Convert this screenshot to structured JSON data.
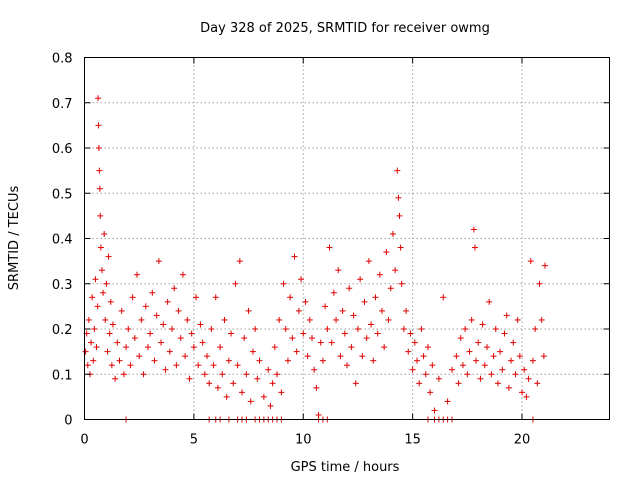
{
  "chart_data": {
    "type": "scatter",
    "title": "Day 328 of 2025, SRMTID for receiver owmg",
    "xlabel": "GPS time / hours",
    "ylabel": "SRMTID / TECUs",
    "xlim": [
      0,
      24
    ],
    "ylim": [
      0,
      0.8
    ],
    "x_ticks": [
      0,
      5,
      10,
      15,
      20
    ],
    "x_tick_labels": [
      "0",
      "5",
      "10",
      "15",
      "20"
    ],
    "y_ticks": [
      0,
      0.1,
      0.2,
      0.3,
      0.4,
      0.5,
      0.6,
      0.7,
      0.8
    ],
    "y_tick_labels": [
      "0",
      "0.1",
      "0.2",
      "0.3",
      "0.4",
      "0.5",
      "0.6",
      "0.7",
      "0.8"
    ],
    "grid": true,
    "marker": "+",
    "marker_color": "#e00000",
    "series": [
      {
        "name": "SRMTID",
        "points": [
          [
            0.05,
            0.15
          ],
          [
            0.1,
            0.19
          ],
          [
            0.15,
            0.12
          ],
          [
            0.2,
            0.22
          ],
          [
            0.25,
            0.1
          ],
          [
            0.3,
            0.17
          ],
          [
            0.35,
            0.27
          ],
          [
            0.4,
            0.13
          ],
          [
            0.45,
            0.2
          ],
          [
            0.5,
            0.31
          ],
          [
            0.55,
            0.16
          ],
          [
            0.6,
            0.25
          ],
          [
            0.62,
            0.71
          ],
          [
            0.64,
            0.65
          ],
          [
            0.66,
            0.6
          ],
          [
            0.68,
            0.55
          ],
          [
            0.7,
            0.51
          ],
          [
            0.72,
            0.45
          ],
          [
            0.75,
            0.38
          ],
          [
            0.8,
            0.33
          ],
          [
            0.85,
            0.28
          ],
          [
            0.9,
            0.41
          ],
          [
            0.95,
            0.22
          ],
          [
            1.0,
            0.3
          ],
          [
            1.05,
            0.15
          ],
          [
            1.1,
            0.36
          ],
          [
            1.15,
            0.19
          ],
          [
            1.2,
            0.26
          ],
          [
            1.25,
            0.12
          ],
          [
            1.3,
            0.21
          ],
          [
            1.4,
            0.09
          ],
          [
            1.5,
            0.17
          ],
          [
            1.6,
            0.13
          ],
          [
            1.7,
            0.24
          ],
          [
            1.8,
            0.1
          ],
          [
            1.9,
            0.16
          ],
          [
            2.0,
            0.2
          ],
          [
            2.1,
            0.12
          ],
          [
            2.2,
            0.27
          ],
          [
            2.3,
            0.18
          ],
          [
            2.4,
            0.32
          ],
          [
            2.5,
            0.14
          ],
          [
            2.6,
            0.22
          ],
          [
            2.7,
            0.1
          ],
          [
            2.8,
            0.25
          ],
          [
            2.9,
            0.16
          ],
          [
            3.0,
            0.19
          ],
          [
            3.1,
            0.28
          ],
          [
            3.2,
            0.13
          ],
          [
            3.3,
            0.23
          ],
          [
            3.4,
            0.35
          ],
          [
            3.5,
            0.17
          ],
          [
            3.6,
            0.21
          ],
          [
            3.7,
            0.11
          ],
          [
            3.8,
            0.26
          ],
          [
            3.9,
            0.15
          ],
          [
            4.0,
            0.2
          ],
          [
            4.1,
            0.29
          ],
          [
            4.2,
            0.12
          ],
          [
            4.3,
            0.24
          ],
          [
            4.4,
            0.18
          ],
          [
            4.5,
            0.32
          ],
          [
            4.6,
            0.14
          ],
          [
            4.7,
            0.22
          ],
          [
            4.8,
            0.09
          ],
          [
            4.9,
            0.19
          ],
          [
            5.0,
            0.16
          ],
          [
            5.1,
            0.27
          ],
          [
            5.2,
            0.12
          ],
          [
            5.3,
            0.21
          ],
          [
            5.4,
            0.17
          ],
          [
            5.5,
            0.1
          ],
          [
            5.6,
            0.14
          ],
          [
            5.7,
            0.08
          ],
          [
            5.8,
            0.2
          ],
          [
            5.9,
            0.12
          ],
          [
            6.0,
            0.27
          ],
          [
            6.1,
            0.07
          ],
          [
            6.2,
            0.16
          ],
          [
            6.3,
            0.1
          ],
          [
            6.4,
            0.22
          ],
          [
            6.5,
            0.05
          ],
          [
            6.6,
            0.13
          ],
          [
            6.7,
            0.19
          ],
          [
            6.8,
            0.08
          ],
          [
            6.9,
            0.3
          ],
          [
            7.0,
            0.12
          ],
          [
            7.1,
            0.35
          ],
          [
            7.2,
            0.06
          ],
          [
            7.3,
            0.18
          ],
          [
            7.4,
            0.1
          ],
          [
            7.5,
            0.24
          ],
          [
            7.6,
            0.04
          ],
          [
            7.7,
            0.15
          ],
          [
            7.8,
            0.2
          ],
          [
            7.9,
            0.09
          ],
          [
            8.0,
            0.13
          ],
          [
            8.2,
            0.05
          ],
          [
            8.4,
            0.11
          ],
          [
            8.5,
            0.03
          ],
          [
            8.6,
            0.08
          ],
          [
            8.7,
            0.16
          ],
          [
            8.8,
            0.1
          ],
          [
            8.9,
            0.22
          ],
          [
            9.0,
            0.06
          ],
          [
            9.1,
            0.3
          ],
          [
            9.2,
            0.2
          ],
          [
            9.3,
            0.13
          ],
          [
            9.4,
            0.27
          ],
          [
            9.5,
            0.18
          ],
          [
            9.6,
            0.36
          ],
          [
            9.7,
            0.15
          ],
          [
            9.8,
            0.24
          ],
          [
            9.9,
            0.31
          ],
          [
            10.0,
            0.19
          ],
          [
            10.1,
            0.26
          ],
          [
            10.2,
            0.14
          ],
          [
            10.3,
            0.22
          ],
          [
            10.4,
            0.18
          ],
          [
            10.5,
            0.11
          ],
          [
            10.6,
            0.07
          ],
          [
            10.7,
            0.01
          ],
          [
            10.8,
            0.17
          ],
          [
            10.9,
            0.13
          ],
          [
            11.0,
            0.25
          ],
          [
            11.1,
            0.2
          ],
          [
            11.2,
            0.38
          ],
          [
            11.3,
            0.17
          ],
          [
            11.4,
            0.28
          ],
          [
            11.5,
            0.22
          ],
          [
            11.6,
            0.33
          ],
          [
            11.7,
            0.14
          ],
          [
            11.8,
            0.24
          ],
          [
            11.9,
            0.19
          ],
          [
            12.0,
            0.12
          ],
          [
            12.1,
            0.29
          ],
          [
            12.2,
            0.16
          ],
          [
            12.3,
            0.23
          ],
          [
            12.4,
            0.08
          ],
          [
            12.5,
            0.2
          ],
          [
            12.6,
            0.31
          ],
          [
            12.7,
            0.14
          ],
          [
            12.8,
            0.26
          ],
          [
            12.9,
            0.18
          ],
          [
            13.0,
            0.35
          ],
          [
            13.1,
            0.21
          ],
          [
            13.2,
            0.13
          ],
          [
            13.3,
            0.27
          ],
          [
            13.4,
            0.19
          ],
          [
            13.5,
            0.32
          ],
          [
            13.6,
            0.24
          ],
          [
            13.7,
            0.16
          ],
          [
            13.8,
            0.37
          ],
          [
            13.9,
            0.22
          ],
          [
            14.0,
            0.29
          ],
          [
            14.1,
            0.41
          ],
          [
            14.2,
            0.33
          ],
          [
            14.3,
            0.55
          ],
          [
            14.35,
            0.49
          ],
          [
            14.4,
            0.45
          ],
          [
            14.45,
            0.38
          ],
          [
            14.5,
            0.3
          ],
          [
            14.6,
            0.2
          ],
          [
            14.7,
            0.24
          ],
          [
            14.8,
            0.15
          ],
          [
            14.9,
            0.19
          ],
          [
            15.0,
            0.11
          ],
          [
            15.1,
            0.17
          ],
          [
            15.2,
            0.13
          ],
          [
            15.3,
            0.08
          ],
          [
            15.4,
            0.2
          ],
          [
            15.5,
            0.14
          ],
          [
            15.6,
            0.1
          ],
          [
            15.7,
            0.16
          ],
          [
            15.8,
            0.06
          ],
          [
            15.9,
            0.12
          ],
          [
            16.0,
            0.02
          ],
          [
            16.2,
            0.09
          ],
          [
            16.4,
            0.27
          ],
          [
            16.6,
            0.04
          ],
          [
            16.8,
            0.11
          ],
          [
            17.0,
            0.14
          ],
          [
            17.1,
            0.08
          ],
          [
            17.2,
            0.18
          ],
          [
            17.3,
            0.12
          ],
          [
            17.4,
            0.2
          ],
          [
            17.5,
            0.1
          ],
          [
            17.6,
            0.15
          ],
          [
            17.7,
            0.22
          ],
          [
            17.8,
            0.42
          ],
          [
            17.85,
            0.38
          ],
          [
            17.9,
            0.13
          ],
          [
            18.0,
            0.17
          ],
          [
            18.1,
            0.09
          ],
          [
            18.2,
            0.21
          ],
          [
            18.3,
            0.12
          ],
          [
            18.4,
            0.16
          ],
          [
            18.5,
            0.26
          ],
          [
            18.6,
            0.1
          ],
          [
            18.7,
            0.14
          ],
          [
            18.8,
            0.2
          ],
          [
            18.9,
            0.08
          ],
          [
            19.0,
            0.15
          ],
          [
            19.1,
            0.11
          ],
          [
            19.2,
            0.19
          ],
          [
            19.3,
            0.23
          ],
          [
            19.4,
            0.07
          ],
          [
            19.5,
            0.13
          ],
          [
            19.6,
            0.17
          ],
          [
            19.7,
            0.1
          ],
          [
            19.8,
            0.22
          ],
          [
            19.9,
            0.14
          ],
          [
            20.0,
            0.06
          ],
          [
            20.1,
            0.11
          ],
          [
            20.2,
            0.05
          ],
          [
            20.3,
            0.09
          ],
          [
            20.4,
            0.35
          ],
          [
            20.5,
            0.13
          ],
          [
            20.6,
            0.2
          ],
          [
            20.7,
            0.08
          ],
          [
            20.8,
            0.3
          ],
          [
            20.9,
            0.22
          ],
          [
            21.0,
            0.14
          ],
          [
            21.05,
            0.34
          ]
        ]
      }
    ],
    "zero_markers_x": [
      1.9,
      5.7,
      6.0,
      6.2,
      6.6,
      7.0,
      7.2,
      7.4,
      7.8,
      8.0,
      8.2,
      8.4,
      8.6,
      8.8,
      9.0,
      10.7,
      10.9,
      11.1,
      15.7,
      16.0,
      16.2,
      16.4,
      16.6,
      16.8,
      20.5
    ]
  }
}
